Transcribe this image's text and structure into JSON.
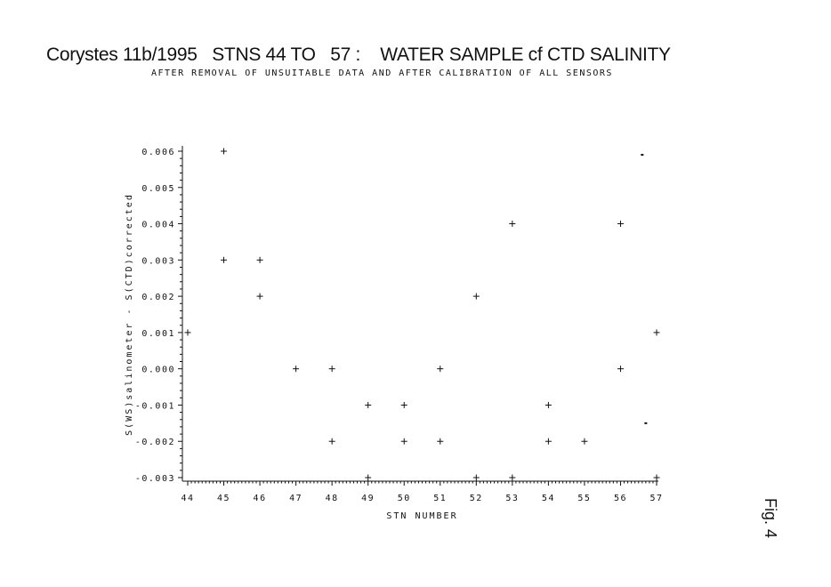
{
  "page": {
    "title": "Corystes 11b/1995   STNS 44 TO   57 :    WATER SAMPLE cf CTD SALINITY",
    "subtitle": "AFTER REMOVAL OF UNSUITABLE DATA AND AFTER CALIBRATION OF ALL SENSORS",
    "fig_label": "Fig. 4"
  },
  "chart_data": {
    "type": "scatter",
    "title": "",
    "xlabel": "STN NUMBER",
    "ylabel": "S(WS)salinometer - S(CTD)corrected",
    "xlim": [
      44,
      57
    ],
    "ylim": [
      -0.003,
      0.006
    ],
    "x_ticks": [
      44,
      45,
      46,
      47,
      48,
      49,
      50,
      51,
      52,
      53,
      54,
      55,
      56,
      57
    ],
    "x_tick_labels": [
      "44",
      "45",
      "46",
      "47",
      "48",
      "49",
      "50",
      "51",
      "52",
      "53",
      "54",
      "55",
      "56",
      "57"
    ],
    "y_ticks": [
      -0.003,
      -0.002,
      -0.001,
      0.0,
      0.001,
      0.002,
      0.003,
      0.004,
      0.005,
      0.006
    ],
    "y_tick_labels": [
      "-0.003",
      "-0.002",
      "-0.001",
      "0.000",
      "0.001",
      "0.002",
      "0.003",
      "0.004",
      "0.005",
      "0.006"
    ],
    "grid": false,
    "marker": "plus",
    "points": [
      {
        "x": 44,
        "y": 0.001
      },
      {
        "x": 45,
        "y": 0.006
      },
      {
        "x": 45,
        "y": 0.003
      },
      {
        "x": 46,
        "y": 0.003
      },
      {
        "x": 46,
        "y": 0.002
      },
      {
        "x": 47,
        "y": 0.0
      },
      {
        "x": 48,
        "y": 0.0
      },
      {
        "x": 48,
        "y": -0.002
      },
      {
        "x": 49,
        "y": -0.001
      },
      {
        "x": 49,
        "y": -0.003
      },
      {
        "x": 50,
        "y": -0.001
      },
      {
        "x": 50,
        "y": -0.002
      },
      {
        "x": 51,
        "y": 0.0
      },
      {
        "x": 51,
        "y": -0.002
      },
      {
        "x": 52,
        "y": 0.002
      },
      {
        "x": 52,
        "y": -0.003
      },
      {
        "x": 53,
        "y": 0.004
      },
      {
        "x": 53,
        "y": -0.003
      },
      {
        "x": 54,
        "y": -0.001
      },
      {
        "x": 54,
        "y": -0.002
      },
      {
        "x": 55,
        "y": -0.002
      },
      {
        "x": 56,
        "y": 0.004
      },
      {
        "x": 56,
        "y": 0.0
      },
      {
        "x": 57,
        "y": 0.001
      },
      {
        "x": 57,
        "y": -0.003
      }
    ],
    "marks": [
      {
        "x": 56.6,
        "y": 0.0059
      },
      {
        "x": 56.7,
        "y": -0.0015
      }
    ]
  }
}
